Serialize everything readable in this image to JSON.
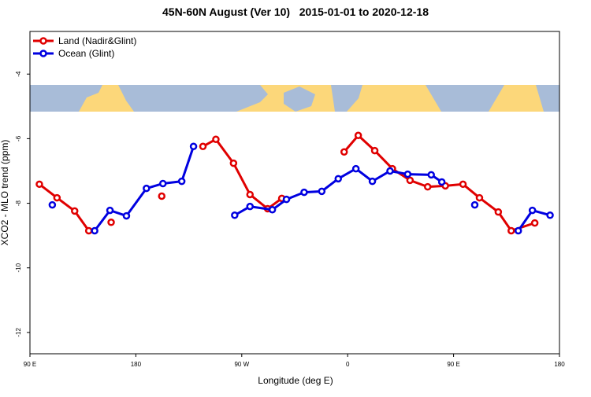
{
  "chart_data": {
    "type": "line",
    "title": "45N-60N August (Ver 10)   2015-01-01 to 2020-12-18",
    "xlabel": "Longitude (deg E)",
    "ylabel": "XCO2 - MLO trend (ppm)",
    "xlim": [
      90,
      540
    ],
    "ylim": [
      -12.66,
      -2.68
    ],
    "xticks": [
      {
        "value": 90,
        "label": "90 E"
      },
      180,
      {
        "value": 270,
        "label": "90 W"
      },
      {
        "value": 360,
        "label": "0"
      },
      {
        "value": 450,
        "label": "90 E"
      },
      {
        "value": 540,
        "label": "180"
      }
    ],
    "yticks": [
      -12,
      -10,
      -8,
      -6,
      -4
    ],
    "legend": "top-left",
    "series": [
      {
        "name": "Land (Nadir&Glint)",
        "color": "#e00000",
        "x": [
          98,
          113,
          128,
          140,
          null,
          159,
          null,
          202,
          null,
          237,
          248,
          263,
          277,
          292,
          304,
          null,
          357,
          369,
          383,
          398,
          413,
          428,
          443,
          458,
          472,
          488,
          499,
          519
        ],
        "values": [
          -7.41,
          -7.83,
          -8.24,
          -8.85,
          null,
          -8.59,
          null,
          -7.78,
          null,
          -6.24,
          -6.02,
          -6.76,
          -7.73,
          -8.17,
          -7.85,
          null,
          -6.41,
          -5.9,
          -6.37,
          -6.93,
          -7.29,
          -7.49,
          -7.46,
          -7.41,
          -7.83,
          -8.27,
          -8.85,
          -8.61
        ]
      },
      {
        "name": "Ocean (Glint)",
        "color": "#0000e0",
        "x": [
          109,
          null,
          145,
          158,
          172,
          189,
          203,
          219,
          229,
          null,
          264,
          277,
          296,
          308,
          323,
          338,
          352,
          367,
          381,
          396,
          411,
          431,
          440,
          null,
          468,
          null,
          505,
          517,
          532
        ],
        "values": [
          -8.05,
          null,
          -8.85,
          -8.22,
          -8.39,
          -7.54,
          -7.39,
          -7.32,
          -6.24,
          null,
          -8.37,
          -8.1,
          -8.2,
          -7.88,
          -7.66,
          -7.63,
          -7.24,
          -6.93,
          -7.32,
          -7.0,
          -7.1,
          -7.12,
          -7.34,
          null,
          -8.05,
          null,
          -8.85,
          -8.22,
          -8.37
        ]
      }
    ]
  }
}
